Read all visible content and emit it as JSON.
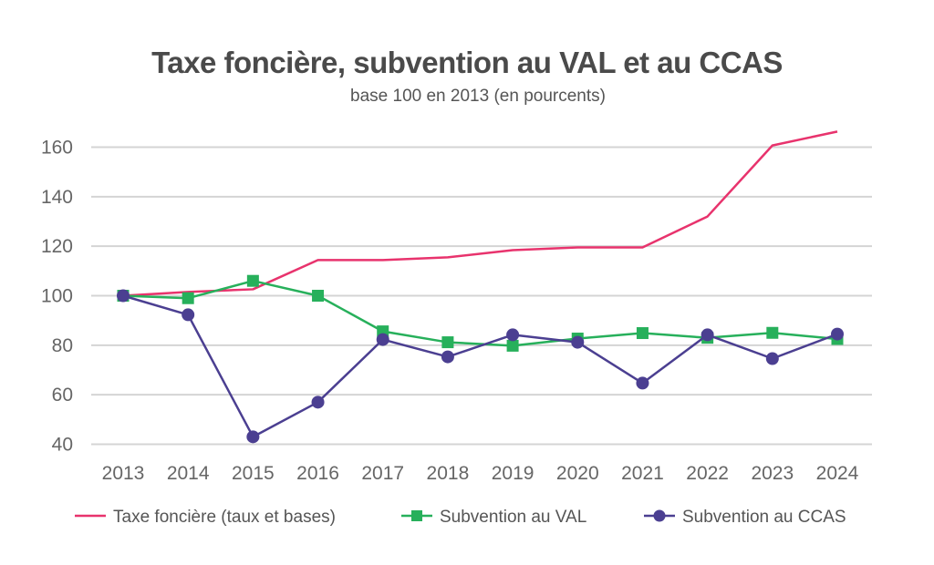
{
  "chart_data": {
    "type": "line",
    "title": "Taxe foncière, subvention au VAL et au CCAS",
    "subtitle": "base 100 en 2013 (en pourcents)",
    "xlabel": "",
    "ylabel": "",
    "categories": [
      "2013",
      "2014",
      "2015",
      "2016",
      "2017",
      "2018",
      "2019",
      "2020",
      "2021",
      "2022",
      "2023",
      "2024"
    ],
    "ylim": [
      40,
      160
    ],
    "yticks": [
      40,
      60,
      80,
      100,
      120,
      140,
      160
    ],
    "grid": true,
    "legend_position": "bottom",
    "series": [
      {
        "name": "Taxe foncière (taux et bases)",
        "color": "#e8336d",
        "marker": "none",
        "values": [
          100,
          101.5,
          102.6,
          114.4,
          114.4,
          115.5,
          118.4,
          119.5,
          119.5,
          132,
          160.7,
          166.3
        ]
      },
      {
        "name": "Subvention au VAL",
        "color": "#27b05b",
        "marker": "square",
        "values": [
          100,
          99,
          106,
          100,
          85.6,
          81.2,
          79.8,
          82.7,
          84.9,
          83,
          85,
          82.5
        ]
      },
      {
        "name": "Subvention au CCAS",
        "color": "#4b3f91",
        "marker": "circle",
        "values": [
          100,
          92.3,
          43,
          57,
          82.3,
          75.3,
          84.2,
          81.2,
          64.7,
          84.2,
          74.6,
          84.5
        ]
      }
    ]
  }
}
